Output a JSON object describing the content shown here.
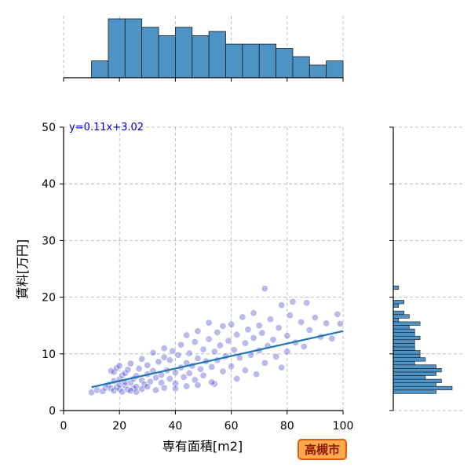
{
  "chart_data": {
    "type": "scatter",
    "xlabel": "専有面積[m2]",
    "ylabel": "賃料[万円]",
    "xlim": [
      0,
      100
    ],
    "ylim": [
      0,
      50
    ],
    "x_ticks": [
      0,
      20,
      40,
      60,
      80,
      100
    ],
    "y_ticks": [
      0,
      10,
      20,
      30,
      40,
      50
    ],
    "grid": true,
    "regression": {
      "label": "y=0.11x+3.02",
      "slope": 0.11,
      "intercept": 3.02,
      "x_range": [
        10,
        100
      ],
      "color": "#1f77b4"
    },
    "point_color": "#3a3ac8",
    "hist_color": "#4e93c6",
    "points": [
      [
        10,
        3.2
      ],
      [
        12,
        3.6
      ],
      [
        14,
        3.4
      ],
      [
        15,
        4.0
      ],
      [
        16,
        4.5
      ],
      [
        17,
        3.9
      ],
      [
        17,
        7.0
      ],
      [
        18,
        3.5
      ],
      [
        18,
        5.2
      ],
      [
        18,
        6.8
      ],
      [
        19,
        4.1
      ],
      [
        19,
        7.5
      ],
      [
        20,
        3.8
      ],
      [
        20,
        4.6
      ],
      [
        20,
        5.5
      ],
      [
        20,
        7.9
      ],
      [
        21,
        3.3
      ],
      [
        21,
        6.2
      ],
      [
        22,
        4.4
      ],
      [
        22,
        5.0
      ],
      [
        22,
        6.6
      ],
      [
        23,
        3.7
      ],
      [
        23,
        7.2
      ],
      [
        24,
        4.9
      ],
      [
        24,
        8.3
      ],
      [
        25,
        3.9
      ],
      [
        25,
        5.6
      ],
      [
        26,
        6.1
      ],
      [
        26,
        4.2
      ],
      [
        27,
        7.4
      ],
      [
        28,
        5.3
      ],
      [
        28,
        9.1
      ],
      [
        29,
        4.6
      ],
      [
        30,
        6.4
      ],
      [
        30,
        8.0
      ],
      [
        31,
        5.1
      ],
      [
        32,
        7.0
      ],
      [
        32,
        10.2
      ],
      [
        33,
        5.8
      ],
      [
        34,
        8.6
      ],
      [
        35,
        6.3
      ],
      [
        35,
        4.9
      ],
      [
        36,
        9.4
      ],
      [
        36,
        11.0
      ],
      [
        37,
        7.1
      ],
      [
        38,
        5.6
      ],
      [
        38,
        8.9
      ],
      [
        39,
        10.5
      ],
      [
        40,
        6.7
      ],
      [
        40,
        4.8
      ],
      [
        41,
        9.8
      ],
      [
        42,
        7.6
      ],
      [
        42,
        11.6
      ],
      [
        43,
        5.9
      ],
      [
        44,
        8.4
      ],
      [
        44,
        13.3
      ],
      [
        45,
        6.6
      ],
      [
        45,
        10.1
      ],
      [
        46,
        7.9
      ],
      [
        47,
        12.1
      ],
      [
        47,
        5.4
      ],
      [
        48,
        9.2
      ],
      [
        48,
        14.0
      ],
      [
        49,
        7.3
      ],
      [
        50,
        10.8
      ],
      [
        50,
        6.2
      ],
      [
        51,
        8.7
      ],
      [
        52,
        12.6
      ],
      [
        52,
        15.5
      ],
      [
        53,
        7.7
      ],
      [
        54,
        10.4
      ],
      [
        54,
        4.7
      ],
      [
        55,
        13.8
      ],
      [
        55,
        8.9
      ],
      [
        56,
        11.5
      ],
      [
        57,
        6.9
      ],
      [
        57,
        14.9
      ],
      [
        58,
        9.6
      ],
      [
        59,
        12.3
      ],
      [
        60,
        15.2
      ],
      [
        60,
        7.8
      ],
      [
        61,
        10.7
      ],
      [
        62,
        13.4
      ],
      [
        62,
        5.6
      ],
      [
        63,
        9.3
      ],
      [
        64,
        16.5
      ],
      [
        65,
        11.9
      ],
      [
        65,
        7.1
      ],
      [
        66,
        14.3
      ],
      [
        67,
        9.8
      ],
      [
        68,
        12.8
      ],
      [
        68,
        17.2
      ],
      [
        69,
        6.4
      ],
      [
        70,
        10.6
      ],
      [
        70,
        15.0
      ],
      [
        71,
        13.7
      ],
      [
        72,
        21.5
      ],
      [
        72,
        8.4
      ],
      [
        73,
        11.4
      ],
      [
        74,
        16.1
      ],
      [
        75,
        12.5
      ],
      [
        76,
        9.5
      ],
      [
        77,
        14.6
      ],
      [
        78,
        18.6
      ],
      [
        78,
        7.6
      ],
      [
        80,
        13.2
      ],
      [
        80,
        10.4
      ],
      [
        81,
        16.8
      ],
      [
        82,
        19.2
      ],
      [
        83,
        12.0
      ],
      [
        85,
        15.6
      ],
      [
        86,
        11.3
      ],
      [
        87,
        19.0
      ],
      [
        88,
        14.2
      ],
      [
        90,
        16.4
      ],
      [
        92,
        13.0
      ],
      [
        94,
        15.4
      ],
      [
        96,
        12.7
      ],
      [
        98,
        17.0
      ],
      [
        99,
        15.3
      ],
      [
        24,
        3.5
      ],
      [
        26,
        3.3
      ],
      [
        28,
        3.8
      ],
      [
        30,
        4.2
      ],
      [
        33,
        3.6
      ],
      [
        36,
        4.0
      ],
      [
        40,
        3.9
      ],
      [
        44,
        4.3
      ],
      [
        48,
        4.5
      ],
      [
        53,
        5.0
      ]
    ]
  },
  "city_badge": "高槻市"
}
